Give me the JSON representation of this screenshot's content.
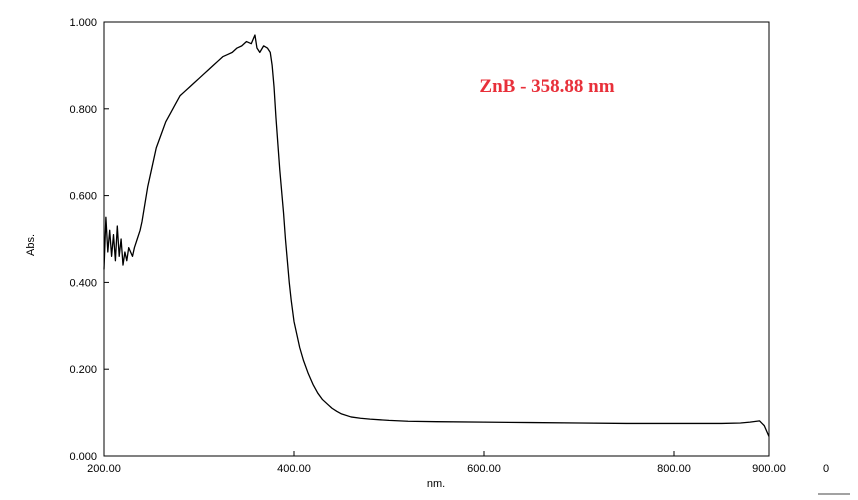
{
  "chart_data": {
    "type": "line",
    "title": "",
    "xlabel": "nm.",
    "ylabel": "Abs.",
    "xlim": [
      200,
      900
    ],
    "ylim": [
      0,
      1
    ],
    "x_ticks": [
      "200.00",
      "400.00",
      "600.00",
      "800.00",
      "900.00"
    ],
    "y_ticks": [
      "0.000",
      "0.200",
      "0.400",
      "0.600",
      "0.800",
      "1.000"
    ],
    "grid": false,
    "annotation": {
      "text": "ZnB - 358.88 nm",
      "color": "#e8303a"
    },
    "extra_label": "0",
    "series": [
      {
        "color": "#000000",
        "x": [
          200,
          202,
          204,
          206,
          208,
          210,
          212,
          214,
          216,
          218,
          220,
          222,
          224,
          226,
          228,
          230,
          232,
          235,
          238,
          240,
          243,
          246,
          250,
          255,
          260,
          265,
          270,
          275,
          280,
          285,
          290,
          295,
          300,
          305,
          310,
          315,
          320,
          325,
          330,
          335,
          340,
          345,
          350,
          355,
          358.88,
          361,
          364,
          368,
          372,
          375,
          377,
          379,
          381,
          383,
          385,
          387,
          389,
          391,
          393,
          395,
          397,
          400,
          403,
          406,
          410,
          415,
          420,
          425,
          430,
          435,
          440,
          445,
          450,
          460,
          470,
          480,
          500,
          520,
          550,
          600,
          650,
          700,
          750,
          800,
          850,
          870,
          880,
          890,
          895,
          900
        ],
        "y": [
          0.43,
          0.55,
          0.47,
          0.52,
          0.46,
          0.51,
          0.45,
          0.53,
          0.46,
          0.5,
          0.44,
          0.47,
          0.45,
          0.48,
          0.47,
          0.46,
          0.48,
          0.5,
          0.52,
          0.54,
          0.58,
          0.62,
          0.66,
          0.71,
          0.74,
          0.77,
          0.79,
          0.81,
          0.83,
          0.84,
          0.85,
          0.86,
          0.87,
          0.88,
          0.89,
          0.9,
          0.91,
          0.92,
          0.925,
          0.93,
          0.94,
          0.945,
          0.955,
          0.95,
          0.97,
          0.94,
          0.93,
          0.945,
          0.94,
          0.93,
          0.9,
          0.85,
          0.78,
          0.72,
          0.66,
          0.61,
          0.56,
          0.5,
          0.45,
          0.4,
          0.36,
          0.31,
          0.28,
          0.25,
          0.22,
          0.19,
          0.165,
          0.145,
          0.13,
          0.12,
          0.11,
          0.103,
          0.097,
          0.09,
          0.087,
          0.085,
          0.082,
          0.08,
          0.079,
          0.078,
          0.077,
          0.076,
          0.075,
          0.075,
          0.075,
          0.076,
          0.078,
          0.081,
          0.07,
          0.045
        ]
      }
    ]
  }
}
